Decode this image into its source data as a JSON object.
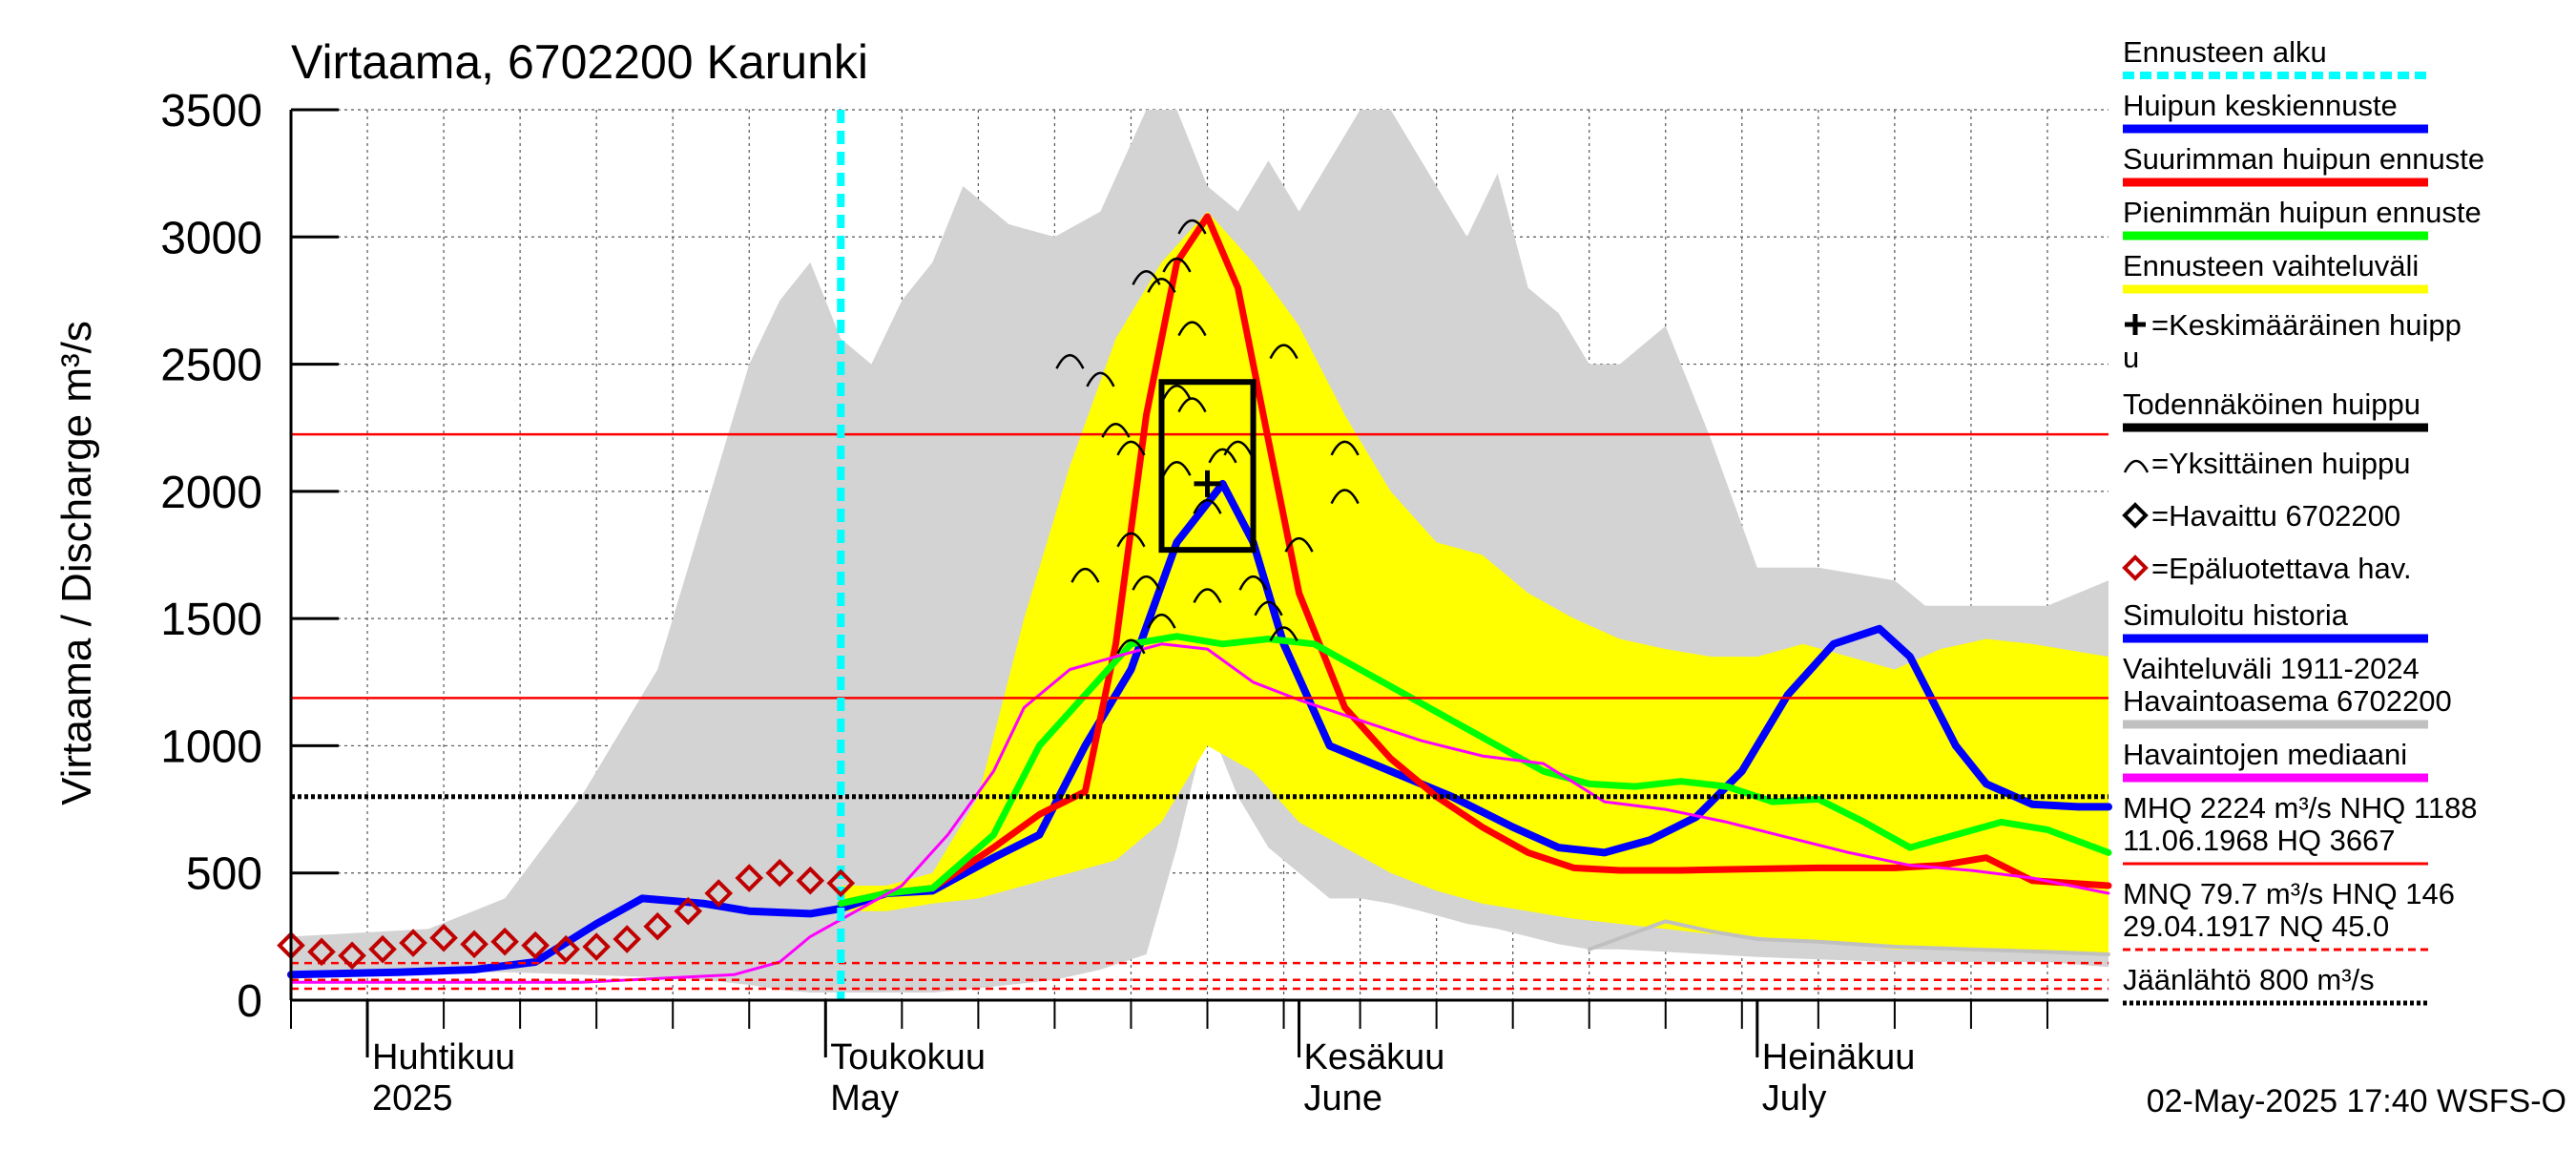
{
  "chart_data": {
    "type": "line",
    "title": "Virtaama, 6702200 Karunki",
    "ylabel": "Virtaama / Discharge   m³/s",
    "ylim": [
      0,
      3500
    ],
    "yticks": [
      0,
      500,
      1000,
      1500,
      2000,
      2500,
      3000,
      3500
    ],
    "xlim": [
      "2025-03-27",
      "2025-07-24"
    ],
    "month_labels": [
      {
        "date": "2025-04-01",
        "line1": "Huhtikuu",
        "line2": "2025"
      },
      {
        "date": "2025-05-01",
        "line1": "Toukokuu",
        "line2": "May"
      },
      {
        "date": "2025-06-01",
        "line1": "Kesäkuu",
        "line2": "June"
      },
      {
        "date": "2025-07-01",
        "line1": "Heinäkuu",
        "line2": "July"
      }
    ],
    "grid": true,
    "legend_position": "right",
    "forecast_start": "2025-05-02",
    "reference_lines": [
      {
        "name": "MHQ",
        "value": 2224,
        "style": "solid",
        "color": "#ff0000"
      },
      {
        "name": "NHQ",
        "value": 1188,
        "style": "solid",
        "color": "#ff0000"
      },
      {
        "name": "Jäänlähtö",
        "value": 800,
        "style": "dotted",
        "color": "#000000"
      },
      {
        "name": "HNQ",
        "value": 146,
        "style": "dashed",
        "color": "#ff0000"
      },
      {
        "name": "MNQ",
        "value": 79.7,
        "style": "dashed",
        "color": "#ff0000"
      },
      {
        "name": "NQ",
        "value": 45.0,
        "style": "dashed",
        "color": "#ff0000"
      }
    ],
    "history_range": {
      "name": "Vaihteluväli 1911-2024",
      "x": [
        "03-27",
        "04-05",
        "04-10",
        "04-15",
        "04-20",
        "04-23",
        "04-26",
        "04-28",
        "04-30",
        "05-02",
        "05-04",
        "05-06",
        "05-08",
        "05-10",
        "05-13",
        "05-16",
        "05-19",
        "05-22",
        "05-24",
        "05-26",
        "05-28",
        "05-30",
        "06-01",
        "06-03",
        "06-05",
        "06-07",
        "06-09",
        "06-12",
        "06-14",
        "06-16",
        "06-18",
        "06-20",
        "06-22",
        "06-25",
        "06-28",
        "07-01",
        "07-05",
        "07-10",
        "07-12",
        "07-16",
        "07-20",
        "07-24"
      ],
      "upper": [
        250,
        280,
        400,
        800,
        1300,
        1900,
        2500,
        2750,
        2900,
        2600,
        2500,
        2750,
        2900,
        3200,
        3050,
        3000,
        3100,
        3500,
        3500,
        3200,
        3100,
        3300,
        3100,
        3300,
        3500,
        3500,
        3300,
        3000,
        3250,
        2800,
        2700,
        2500,
        2500,
        2650,
        2200,
        1700,
        1700,
        1650,
        1550,
        1550,
        1550,
        1650
      ],
      "lower": [
        110,
        110,
        110,
        100,
        90,
        80,
        60,
        40,
        30,
        30,
        30,
        30,
        30,
        40,
        60,
        80,
        120,
        180,
        600,
        1100,
        800,
        600,
        500,
        400,
        400,
        380,
        350,
        300,
        280,
        250,
        220,
        200,
        200,
        190,
        180,
        170,
        160,
        150,
        150,
        150,
        150,
        130
      ]
    },
    "forecast_range": {
      "name": "Ennusteen vaihteluväli",
      "x": [
        "05-02",
        "05-05",
        "05-08",
        "05-11",
        "05-14",
        "05-17",
        "05-20",
        "05-23",
        "05-26",
        "05-29",
        "06-01",
        "06-04",
        "06-07",
        "06-10",
        "06-13",
        "06-16",
        "06-19",
        "06-22",
        "06-25",
        "06-28",
        "07-01",
        "07-04",
        "07-07",
        "07-10",
        "07-13",
        "07-16",
        "07-19",
        "07-24"
      ],
      "upper": [
        450,
        450,
        500,
        800,
        1500,
        2100,
        2600,
        2900,
        3100,
        2900,
        2650,
        2300,
        2000,
        1800,
        1750,
        1600,
        1500,
        1420,
        1380,
        1350,
        1350,
        1400,
        1350,
        1300,
        1380,
        1420,
        1400,
        1350
      ],
      "lower": [
        350,
        350,
        380,
        400,
        450,
        500,
        550,
        700,
        1000,
        900,
        700,
        600,
        500,
        430,
        380,
        350,
        320,
        300,
        280,
        260,
        250,
        230,
        220,
        200,
        200,
        200,
        190,
        180
      ]
    },
    "series": [
      {
        "name": "Huipun keskiennuste",
        "color": "#0000ff",
        "x": [
          "03-27",
          "04-03",
          "04-08",
          "04-12",
          "04-16",
          "04-19",
          "04-23",
          "04-26",
          "04-30",
          "05-02",
          "05-05",
          "05-08",
          "05-12",
          "05-15",
          "05-18",
          "05-21",
          "05-24",
          "05-27",
          "05-29",
          "05-31",
          "06-03",
          "06-07",
          "06-11",
          "06-15",
          "06-18",
          "06-21",
          "06-24",
          "06-27",
          "06-30",
          "07-03",
          "07-06",
          "07-09",
          "07-11",
          "07-14",
          "07-16",
          "07-19",
          "07-22",
          "07-24"
        ],
        "y": [
          100,
          110,
          120,
          150,
          300,
          400,
          380,
          350,
          340,
          360,
          420,
          430,
          560,
          650,
          1000,
          1300,
          1800,
          2030,
          1800,
          1400,
          1000,
          900,
          800,
          680,
          600,
          580,
          630,
          720,
          900,
          1200,
          1400,
          1460,
          1350,
          1000,
          850,
          770,
          760,
          760
        ]
      },
      {
        "name": "Suurimman huipun ennuste",
        "color": "#ff0000",
        "x": [
          "05-02",
          "05-05",
          "05-08",
          "05-12",
          "05-15",
          "05-18",
          "05-20",
          "05-22",
          "05-24",
          "05-26",
          "05-28",
          "05-30",
          "06-01",
          "06-04",
          "06-07",
          "06-10",
          "06-13",
          "06-16",
          "06-19",
          "06-22",
          "06-26",
          "06-30",
          "07-05",
          "07-10",
          "07-13",
          "07-16",
          "07-19",
          "07-24"
        ],
        "y": [
          380,
          420,
          440,
          600,
          730,
          820,
          1400,
          2300,
          2900,
          3080,
          2800,
          2200,
          1600,
          1150,
          950,
          800,
          680,
          580,
          520,
          510,
          510,
          515,
          520,
          520,
          530,
          560,
          470,
          450
        ]
      },
      {
        "name": "Pienimmän huipun ennuste",
        "color": "#00ff00",
        "x": [
          "05-02",
          "05-05",
          "05-08",
          "05-12",
          "05-15",
          "05-18",
          "05-21",
          "05-24",
          "05-27",
          "05-30",
          "06-02",
          "06-05",
          "06-08",
          "06-11",
          "06-14",
          "06-17",
          "06-20",
          "06-23",
          "06-26",
          "06-29",
          "07-02",
          "07-05",
          "07-08",
          "07-11",
          "07-14",
          "07-17",
          "07-20",
          "07-24"
        ],
        "y": [
          380,
          420,
          440,
          650,
          1000,
          1200,
          1400,
          1430,
          1400,
          1420,
          1400,
          1300,
          1200,
          1100,
          1000,
          900,
          850,
          840,
          860,
          840,
          780,
          790,
          700,
          600,
          650,
          700,
          670,
          580
        ]
      },
      {
        "name": "Havaintojen mediaani",
        "color": "#ff00ff",
        "x": [
          "03-27",
          "04-15",
          "04-25",
          "04-28",
          "04-30",
          "05-03",
          "05-06",
          "05-09",
          "05-12",
          "05-14",
          "05-17",
          "05-20",
          "05-23",
          "05-26",
          "05-29",
          "06-01",
          "06-05",
          "06-09",
          "06-13",
          "06-17",
          "06-21",
          "06-25",
          "06-29",
          "07-03",
          "07-07",
          "07-11",
          "07-15",
          "07-19",
          "07-24"
        ],
        "y": [
          70,
          70,
          100,
          150,
          250,
          350,
          450,
          650,
          900,
          1150,
          1300,
          1350,
          1400,
          1380,
          1250,
          1180,
          1100,
          1020,
          960,
          930,
          780,
          750,
          700,
          640,
          580,
          530,
          510,
          480,
          420
        ]
      },
      {
        "name": "Simuloitu historia",
        "color": "#c0c0c0",
        "x": [
          "06-20",
          "06-25",
          "06-28",
          "07-01",
          "07-05",
          "07-10",
          "07-15",
          "07-20",
          "07-24"
        ],
        "y": [
          200,
          310,
          270,
          240,
          230,
          210,
          200,
          190,
          180
        ]
      }
    ],
    "observed_unreliable": {
      "name": "Epäluotettava hav.",
      "color": "#c00000",
      "x": [
        "03-27",
        "03-29",
        "03-31",
        "04-02",
        "04-04",
        "04-06",
        "04-08",
        "04-10",
        "04-12",
        "04-14",
        "04-16",
        "04-18",
        "04-20",
        "04-22",
        "04-24",
        "04-26",
        "04-28",
        "04-30",
        "05-02"
      ],
      "y": [
        215,
        190,
        175,
        200,
        225,
        245,
        220,
        230,
        215,
        200,
        210,
        240,
        290,
        350,
        420,
        480,
        500,
        470,
        460
      ]
    },
    "individual_peaks": {
      "name": "Yksittäinen huippu",
      "x": [
        "05-17",
        "05-19",
        "05-20",
        "05-21",
        "05-21",
        "05-21",
        "05-22",
        "05-22",
        "05-23",
        "05-24",
        "05-24",
        "05-24",
        "05-25",
        "05-25",
        "05-25",
        "05-26",
        "05-26",
        "05-27",
        "05-28",
        "05-29",
        "05-30",
        "05-31",
        "05-31",
        "06-01",
        "06-04",
        "06-04",
        "05-18",
        "05-23"
      ],
      "y": [
        2520,
        2450,
        2250,
        2180,
        1820,
        1400,
        2850,
        1650,
        2820,
        2900,
        2400,
        2100,
        3050,
        2650,
        2350,
        1950,
        1600,
        2150,
        2180,
        1650,
        1550,
        2560,
        1450,
        1800,
        1990,
        2180,
        1680,
        1500
      ]
    },
    "mean_peak": {
      "name": "Keskimääräinen huippu",
      "date": "2025-05-26",
      "value": 2030
    },
    "likely_peak_box": {
      "name": "Todennäköinen huippu",
      "x0": "2025-05-23",
      "x1": "2025-05-29",
      "y0": 1770,
      "y1": 2430
    },
    "legend": [
      {
        "label": "Ennusteen alku",
        "color": "#00ffff",
        "style": "dashed"
      },
      {
        "label": "Huipun keskiennuste",
        "color": "#0000ff",
        "style": "line"
      },
      {
        "label": "Suurimman huipun ennuste",
        "color": "#ff0000",
        "style": "line"
      },
      {
        "label": "Pienimmän huipun ennuste",
        "color": "#00ff00",
        "style": "line"
      },
      {
        "label": "Ennusteen vaihteluväli",
        "color": "#ffff00",
        "style": "line"
      },
      {
        "label": "=Keskimääräinen huipp",
        "label2": "u",
        "color": "#000000",
        "style": "plus"
      },
      {
        "label": "Todennäköinen huippu",
        "color": "#000000",
        "style": "line"
      },
      {
        "label": "=Yksittäinen huippu",
        "color": "#000000",
        "style": "arc"
      },
      {
        "label": "=Havaittu 6702200",
        "color": "#000000",
        "style": "diamond"
      },
      {
        "label": "=Epäluotettava hav.",
        "color": "#c00000",
        "style": "diamond"
      },
      {
        "label": "Simuloitu historia",
        "color": "#0000ff",
        "style": "line"
      },
      {
        "label": "Vaihteluväli 1911-2024",
        "label2": " Havaintoasema 6702200",
        "color": "#c0c0c0",
        "style": "line"
      },
      {
        "label": "Havaintojen mediaani",
        "color": "#ff00ff",
        "style": "line"
      },
      {
        "label": "MHQ 2224 m³/s NHQ 1188",
        "label2": "11.06.1968 HQ 3667",
        "color": "#ff0000",
        "style": "line"
      },
      {
        "label": "MNQ 79.7 m³/s HNQ  146",
        "label2": "29.04.1917 NQ 45.0",
        "color": "#ff0000",
        "style": "dashed"
      },
      {
        "label": "Jäänlähtö 800 m³/s",
        "color": "#000000",
        "style": "dotted"
      }
    ],
    "footer": "02-May-2025 17:40 WSFS-O"
  }
}
